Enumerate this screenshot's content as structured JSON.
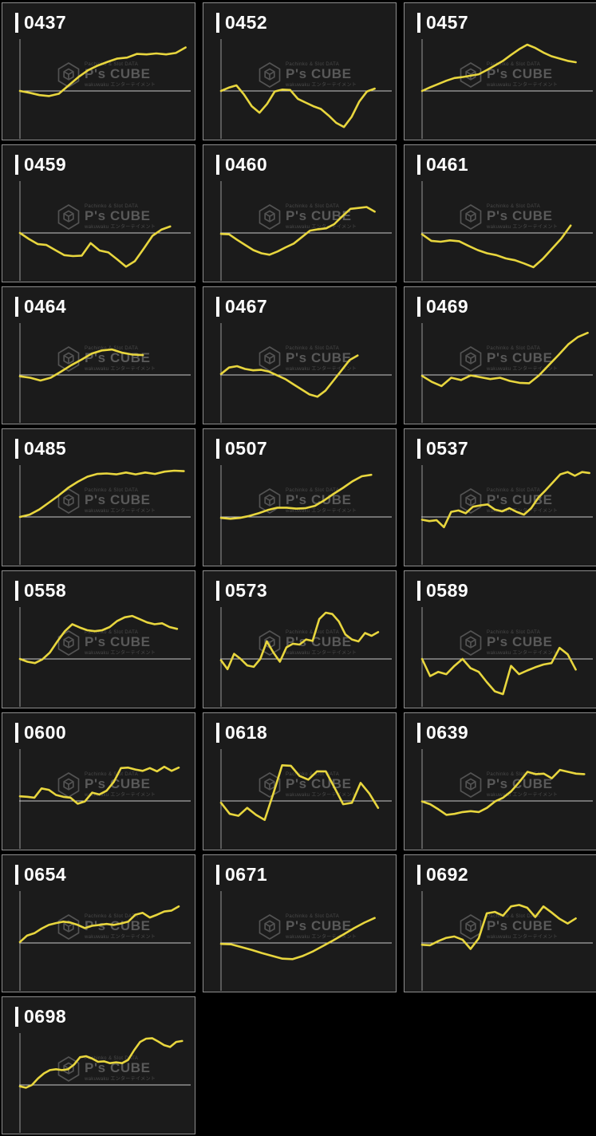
{
  "page": {
    "background": "#000000"
  },
  "panel_style": {
    "bg": "#1b1b1b",
    "border": "#8e8e8e",
    "title_color": "#ffffff",
    "axis_color": "#9a9a9a",
    "baseline_color": "#c9c9c9",
    "line_color": "#e8d63e"
  },
  "watermark": {
    "top": "Pachinko & Slot DATA",
    "brand": "P's CUBE",
    "bottom": "wakuwaku エンターテイメント",
    "color": "#4a4a4a"
  },
  "chart_notes": "Each tile is an unlabeled payout-difference sparkline for one machine. No tick labels are shown; values below are normalized estimates where 0 = the gray baseline and 1.0 = the top of the plot area.",
  "chart_data": [
    {
      "id": "0437",
      "type": "line",
      "baseline": 0,
      "ylim": [
        -1,
        1
      ],
      "x_end_frac": 0.97,
      "values": [
        0,
        -0.04,
        -0.09,
        -0.11,
        -0.06,
        0.12,
        0.3,
        0.45,
        0.55,
        0.63,
        0.7,
        0.72,
        0.8,
        0.79,
        0.81,
        0.79,
        0.82,
        0.94
      ]
    },
    {
      "id": "0452",
      "type": "line",
      "baseline": 0,
      "ylim": [
        -1,
        1
      ],
      "x_end_frac": 0.9,
      "values": [
        0,
        0.07,
        0.12,
        -0.08,
        -0.33,
        -0.47,
        -0.28,
        -0.01,
        0.03,
        0.02,
        -0.17,
        -0.25,
        -0.33,
        -0.39,
        -0.53,
        -0.69,
        -0.78,
        -0.56,
        -0.23,
        -0.01,
        0.05
      ]
    },
    {
      "id": "0457",
      "type": "line",
      "baseline": 0,
      "ylim": [
        -1,
        1
      ],
      "x_end_frac": 0.9,
      "values": [
        0,
        0.08,
        0.15,
        0.22,
        0.28,
        0.3,
        0.33,
        0.36,
        0.45,
        0.55,
        0.65,
        0.78,
        0.9,
        1.0,
        0.93,
        0.83,
        0.75,
        0.7,
        0.65,
        0.62
      ]
    },
    {
      "id": "0459",
      "type": "line",
      "baseline": 0,
      "ylim": [
        -1,
        1
      ],
      "x_end_frac": 0.88,
      "values": [
        0,
        -0.13,
        -0.24,
        -0.26,
        -0.37,
        -0.48,
        -0.5,
        -0.49,
        -0.22,
        -0.38,
        -0.42,
        -0.57,
        -0.73,
        -0.61,
        -0.34,
        -0.06,
        0.07,
        0.14
      ]
    },
    {
      "id": "0460",
      "type": "line",
      "baseline": 0,
      "ylim": [
        -1,
        1
      ],
      "x_end_frac": 0.9,
      "values": [
        -0.02,
        -0.03,
        -0.15,
        -0.26,
        -0.37,
        -0.44,
        -0.47,
        -0.4,
        -0.31,
        -0.23,
        -0.09,
        0.05,
        0.08,
        0.1,
        0.19,
        0.36,
        0.52,
        0.54,
        0.56,
        0.46
      ]
    },
    {
      "id": "0461",
      "type": "line",
      "baseline": 0,
      "ylim": [
        -1,
        1
      ],
      "x_end_frac": 0.87,
      "values": [
        -0.03,
        -0.17,
        -0.19,
        -0.16,
        -0.18,
        -0.28,
        -0.37,
        -0.44,
        -0.48,
        -0.55,
        -0.59,
        -0.66,
        -0.74,
        -0.56,
        -0.34,
        -0.12,
        0.16
      ]
    },
    {
      "id": "0464",
      "type": "line",
      "baseline": 0,
      "ylim": [
        -1,
        1
      ],
      "x_end_frac": 0.72,
      "values": [
        -0.03,
        -0.06,
        -0.12,
        -0.06,
        0.07,
        0.21,
        0.33,
        0.46,
        0.53,
        0.55,
        0.48,
        0.44,
        0.43
      ]
    },
    {
      "id": "0467",
      "type": "line",
      "baseline": 0,
      "ylim": [
        -1,
        1
      ],
      "x_end_frac": 0.8,
      "values": [
        0.02,
        0.16,
        0.19,
        0.13,
        0.1,
        0.11,
        0.07,
        -0.01,
        -0.09,
        -0.2,
        -0.31,
        -0.42,
        -0.47,
        -0.34,
        -0.12,
        0.1,
        0.32,
        0.42
      ]
    },
    {
      "id": "0469",
      "type": "line",
      "baseline": 0,
      "ylim": [
        -1,
        1
      ],
      "x_end_frac": 0.97,
      "values": [
        -0.02,
        -0.15,
        -0.24,
        -0.06,
        -0.11,
        -0.01,
        -0.05,
        -0.09,
        -0.06,
        -0.13,
        -0.17,
        -0.18,
        -0.01,
        0.21,
        0.43,
        0.66,
        0.82,
        0.91
      ]
    },
    {
      "id": "0485",
      "type": "line",
      "baseline": 0,
      "ylim": [
        -1,
        1
      ],
      "x_end_frac": 0.96,
      "values": [
        0,
        0.05,
        0.16,
        0.31,
        0.46,
        0.63,
        0.76,
        0.87,
        0.93,
        0.94,
        0.92,
        0.96,
        0.92,
        0.96,
        0.93,
        0.98,
        1.0,
        0.99
      ]
    },
    {
      "id": "0507",
      "type": "line",
      "baseline": 0,
      "ylim": [
        -1,
        1
      ],
      "x_end_frac": 0.88,
      "values": [
        -0.02,
        -0.04,
        -0.02,
        0.02,
        0.08,
        0.15,
        0.2,
        0.2,
        0.18,
        0.19,
        0.24,
        0.36,
        0.5,
        0.63,
        0.77,
        0.88,
        0.91
      ]
    },
    {
      "id": "0537",
      "type": "line",
      "baseline": 0,
      "ylim": [
        -1,
        1
      ],
      "x_end_frac": 0.98,
      "values": [
        -0.06,
        -0.09,
        -0.07,
        -0.22,
        0.11,
        0.14,
        0.08,
        0.22,
        0.25,
        0.27,
        0.16,
        0.12,
        0.19,
        0.11,
        0.05,
        0.19,
        0.42,
        0.58,
        0.75,
        0.92,
        0.97,
        0.89,
        0.97,
        0.95
      ]
    },
    {
      "id": "0558",
      "type": "line",
      "baseline": 0,
      "ylim": [
        -1,
        1
      ],
      "x_end_frac": 0.92,
      "values": [
        0,
        -0.06,
        -0.09,
        -0.01,
        0.14,
        0.38,
        0.6,
        0.75,
        0.68,
        0.62,
        0.6,
        0.62,
        0.69,
        0.82,
        0.9,
        0.93,
        0.86,
        0.79,
        0.75,
        0.77,
        0.69,
        0.65
      ]
    },
    {
      "id": "0573",
      "type": "line",
      "baseline": 0,
      "ylim": [
        -1,
        1
      ],
      "x_end_frac": 0.92,
      "values": [
        -0.03,
        -0.22,
        0.11,
        0,
        -0.14,
        -0.17,
        0,
        0.38,
        0.14,
        -0.06,
        0.25,
        0.33,
        0.31,
        0.42,
        0.39,
        0.86,
        1.0,
        0.97,
        0.81,
        0.53,
        0.42,
        0.38,
        0.56,
        0.5,
        0.58
      ]
    },
    {
      "id": "0589",
      "type": "line",
      "baseline": 0,
      "ylim": [
        -1,
        1
      ],
      "x_end_frac": 0.9,
      "values": [
        0,
        -0.37,
        -0.28,
        -0.33,
        -0.15,
        0,
        -0.2,
        -0.28,
        -0.5,
        -0.7,
        -0.76,
        -0.15,
        -0.33,
        -0.25,
        -0.18,
        -0.12,
        -0.09,
        0.24,
        0.1,
        -0.23
      ]
    },
    {
      "id": "0600",
      "type": "line",
      "baseline": 0,
      "ylim": [
        -1,
        1
      ],
      "x_end_frac": 0.93,
      "values": [
        0.1,
        0.09,
        0.07,
        0.27,
        0.24,
        0.13,
        0.09,
        0.07,
        -0.06,
        -0.01,
        0.18,
        0.14,
        0.22,
        0.41,
        0.71,
        0.72,
        0.68,
        0.65,
        0.71,
        0.64,
        0.74,
        0.65,
        0.72
      ]
    },
    {
      "id": "0618",
      "type": "line",
      "baseline": 0,
      "ylim": [
        -1,
        1
      ],
      "x_end_frac": 0.92,
      "values": [
        -0.04,
        -0.28,
        -0.32,
        -0.15,
        -0.3,
        -0.41,
        0.16,
        0.77,
        0.76,
        0.54,
        0.46,
        0.64,
        0.64,
        0.29,
        -0.07,
        -0.04,
        0.39,
        0.16,
        -0.15
      ]
    },
    {
      "id": "0639",
      "type": "line",
      "baseline": 0,
      "ylim": [
        -1,
        1
      ],
      "x_end_frac": 0.95,
      "values": [
        -0.01,
        -0.07,
        -0.18,
        -0.3,
        -0.28,
        -0.24,
        -0.22,
        -0.24,
        -0.15,
        -0.01,
        0.07,
        0.21,
        0.41,
        0.63,
        0.58,
        0.59,
        0.49,
        0.67,
        0.63,
        0.59,
        0.58
      ]
    },
    {
      "id": "0654",
      "type": "line",
      "baseline": 0,
      "ylim": [
        -1,
        1
      ],
      "x_end_frac": 0.93,
      "values": [
        0.02,
        0.16,
        0.21,
        0.31,
        0.39,
        0.43,
        0.46,
        0.44,
        0.39,
        0.32,
        0.37,
        0.39,
        0.41,
        0.39,
        0.42,
        0.46,
        0.61,
        0.65,
        0.55,
        0.61,
        0.68,
        0.7,
        0.79
      ]
    },
    {
      "id": "0671",
      "type": "line",
      "baseline": 0,
      "ylim": [
        -1,
        1
      ],
      "x_end_frac": 0.9,
      "values": [
        -0.02,
        -0.03,
        -0.09,
        -0.15,
        -0.22,
        -0.28,
        -0.34,
        -0.35,
        -0.28,
        -0.18,
        -0.06,
        0.06,
        0.19,
        0.32,
        0.44,
        0.54
      ]
    },
    {
      "id": "0692",
      "type": "line",
      "baseline": 0,
      "ylim": [
        -1,
        1
      ],
      "x_end_frac": 0.9,
      "values": [
        -0.04,
        -0.05,
        0.04,
        0.11,
        0.14,
        0.07,
        -0.13,
        0.1,
        0.64,
        0.67,
        0.59,
        0.79,
        0.82,
        0.76,
        0.56,
        0.79,
        0.66,
        0.52,
        0.42,
        0.53
      ]
    },
    {
      "id": "0698",
      "type": "line",
      "baseline": 0,
      "ylim": [
        -1,
        1
      ],
      "x_end_frac": 0.95,
      "values": [
        -0.03,
        -0.06,
        0,
        0.14,
        0.25,
        0.32,
        0.34,
        0.32,
        0.34,
        0.44,
        0.6,
        0.62,
        0.57,
        0.5,
        0.51,
        0.47,
        0.49,
        0.47,
        0.54,
        0.75,
        0.93,
        1.0,
        1.01,
        0.94,
        0.86,
        0.82,
        0.93,
        0.95
      ]
    }
  ]
}
